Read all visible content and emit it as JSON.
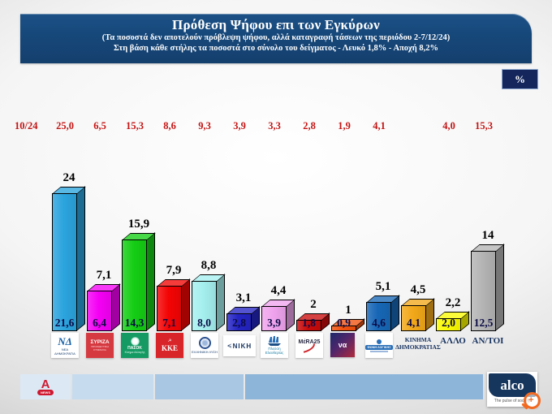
{
  "header": {
    "title": "Πρόθεση Ψήφου επι των Εγκύρων",
    "subtitle1": "(Τα ποσοστά δεν αποτελούν πρόβλεψη ψήφου, αλλά καταγραφή τάσεων της περιόδου  2-7/12/24)",
    "subtitle2": "Στη βάση κάθε στήλης τα ποσοστά στο σύνολο του δείγματος - Λευκό 1,8% - Αποχή 8,2%"
  },
  "percent_badge": "%",
  "previous_column_label": "10/24",
  "chart_data": {
    "type": "bar",
    "title": "Πρόθεση Ψήφου επι των Εγκύρων",
    "unit": "%",
    "ylim": [
      0,
      26
    ],
    "grid": false,
    "legend": "none",
    "categories": [
      "ΝΕΑ ΔΗΜΟΚΡΑΤΙΑ",
      "ΣΥΡΙΖΑ",
      "ΠΑΣΟΚ",
      "ΚΚΕ",
      "ΕΛΛΗΝΙΚΗ ΛΥΣΗ",
      "ΝΙΚΗ",
      "ΠΛΕΥΣΗ ΕΛΕΥΘΕΡΙΑΣ",
      "ΜΕΡΑ25",
      "ΝΕΑ ΑΡΙΣΤΕΡΑ",
      "ΦΩΝΗ ΛΟΓΙΚΗΣ",
      "ΚΙΝΗΜΑ ΔΗΜΟΚΡΑΤΙΑΣ",
      "ΑΛΛΟ",
      "ΑΝ/ΤΟΙ"
    ],
    "series": [
      {
        "name": "Πρόθεση ψήφου επί των εγκύρων 2-7/12/24",
        "values": [
          24,
          7.1,
          15.9,
          7.9,
          8.8,
          3.1,
          4.4,
          2,
          1,
          5.1,
          4.5,
          2.2,
          14
        ]
      },
      {
        "name": "Ποσοστά στο σύνολο του δείγματος",
        "values": [
          21.6,
          6.4,
          14.3,
          7.1,
          8.0,
          2.8,
          3.9,
          1.8,
          0.9,
          4.6,
          4.1,
          2.0,
          12.5
        ]
      },
      {
        "name": "10/24",
        "values": [
          25.0,
          6.5,
          15.3,
          8.6,
          9.3,
          3.9,
          3.3,
          2.8,
          1.9,
          4.1,
          null,
          4.0,
          15.3
        ]
      }
    ],
    "parties": [
      {
        "key": "nd",
        "logo_type": "nd",
        "top_label": "24",
        "inner_label": "21,6",
        "prev_label": "25,0",
        "color": "#2BA4DE",
        "logo_caption": "ΝΕΑ ΔΗΜΟΚΡΑΤΙΑ",
        "logo_main": "ΝΔ"
      },
      {
        "key": "syriza",
        "logo_type": "syriza",
        "top_label": "7,1",
        "inner_label": "6,4",
        "prev_label": "6,5",
        "color": "#F500F5",
        "logo_caption": "ΠΡΟΟΔΕΥΤΙΚΗ ΣΥΜΜΑΧΙΑ",
        "logo_main": "ΣΥΡΙΖΑ"
      },
      {
        "key": "pasok",
        "logo_type": "pasok",
        "top_label": "15,9",
        "inner_label": "14,3",
        "prev_label": "15,3",
        "color": "#15CE15",
        "logo_caption": "Κίνημα Αλλαγής",
        "logo_main": "ΠΑΣΟΚ"
      },
      {
        "key": "kke",
        "logo_type": "kke",
        "top_label": "7,9",
        "inner_label": "7,1",
        "prev_label": "8,6",
        "color": "#F40404",
        "logo_caption": "",
        "logo_main": "ΚΚΕ"
      },
      {
        "key": "elliniki-lysi",
        "logo_type": "ellysi",
        "top_label": "8,8",
        "inner_label": "8,0",
        "prev_label": "9,3",
        "color": "#A5EFEF",
        "logo_caption": "ΕΛΛΗΝΙΚΗ ΛΥΣΗ",
        "logo_main": ""
      },
      {
        "key": "niki",
        "logo_type": "niki",
        "top_label": "3,1",
        "inner_label": "2,8",
        "prev_label": "3,9",
        "color": "#2424C4",
        "logo_caption": "",
        "logo_main": "ΝΙΚΗ"
      },
      {
        "key": "plefsi-eleftherias",
        "logo_type": "plefsi",
        "top_label": "4,4",
        "inner_label": "3,9",
        "prev_label": "3,3",
        "color": "#EFA3ED",
        "logo_caption": "Πλεύση Ελευθερίας",
        "logo_main": ""
      },
      {
        "key": "mera25",
        "logo_type": "mera25",
        "top_label": "2",
        "inner_label": "1,8",
        "prev_label": "2,8",
        "color": "#C90A0A",
        "logo_caption": "",
        "logo_main": "MέRA25"
      },
      {
        "key": "nea-aristera",
        "logo_type": "nea-aristera",
        "top_label": "1",
        "inner_label": "0,9",
        "prev_label": "1,9",
        "color": "#F2520E",
        "logo_caption": "",
        "logo_main": "να"
      },
      {
        "key": "foni-logikis",
        "logo_type": "foni",
        "top_label": "5,1",
        "inner_label": "4,6",
        "prev_label": "4,1",
        "color": "#1767B6",
        "logo_caption": "ΦΩΝΗ ΛΟΓΙΚΗΣ",
        "logo_main": ""
      },
      {
        "key": "kinima-dimokratias",
        "logo_type": "text2",
        "top_label": "4,5",
        "inner_label": "4,1",
        "prev_label": "",
        "color": "#F2A819",
        "logo_caption": "",
        "logo_main": "ΚΙΝΗΜΑ ΔΗΜΟΚΡΑΤΙΑΣ"
      },
      {
        "key": "allo",
        "logo_type": "text",
        "top_label": "2,2",
        "inner_label": "2,0",
        "prev_label": "4,0",
        "color": "#FBFB02",
        "logo_caption": "",
        "logo_main": "ΑΛΛΟ"
      },
      {
        "key": "antoi",
        "logo_type": "text",
        "top_label": "14",
        "inner_label": "12,5",
        "prev_label": "15,3",
        "color": "#B4B4B4",
        "logo_caption": "",
        "logo_main": "ΑΝ/ΤΟΙ"
      }
    ]
  },
  "footer": {
    "alpha_letter": "Α",
    "alpha_news_label": "NEWS",
    "alco_name": "alco",
    "alco_tagline": "The pulse of society"
  }
}
